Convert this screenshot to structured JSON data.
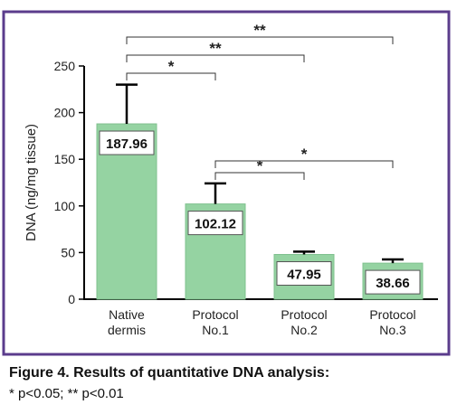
{
  "chart_data": {
    "type": "bar",
    "ylabel": "DNA (ng/mg tissue)",
    "categories": [
      "Native dermis",
      "Protocol No.1",
      "Protocol No.2",
      "Protocol No.3"
    ],
    "values": [
      187.96,
      102.12,
      47.95,
      38.66
    ],
    "errors": [
      42,
      22,
      3,
      4
    ],
    "color": "#95d3a2",
    "ylim": [
      0,
      250
    ],
    "yticks": [
      0,
      50,
      100,
      150,
      200,
      250
    ],
    "grid": false,
    "significance": [
      {
        "from": 0,
        "to": 1,
        "label": "*"
      },
      {
        "from": 0,
        "to": 2,
        "label": "**"
      },
      {
        "from": 0,
        "to": 3,
        "label": "**"
      },
      {
        "from": 1,
        "to": 2,
        "label": "*"
      },
      {
        "from": 1,
        "to": 3,
        "label": "*"
      }
    ]
  },
  "caption": {
    "title": "Figure 4. Results of quantitative DNA analysis:",
    "note": "* p<0.05; ** p<0.01"
  }
}
